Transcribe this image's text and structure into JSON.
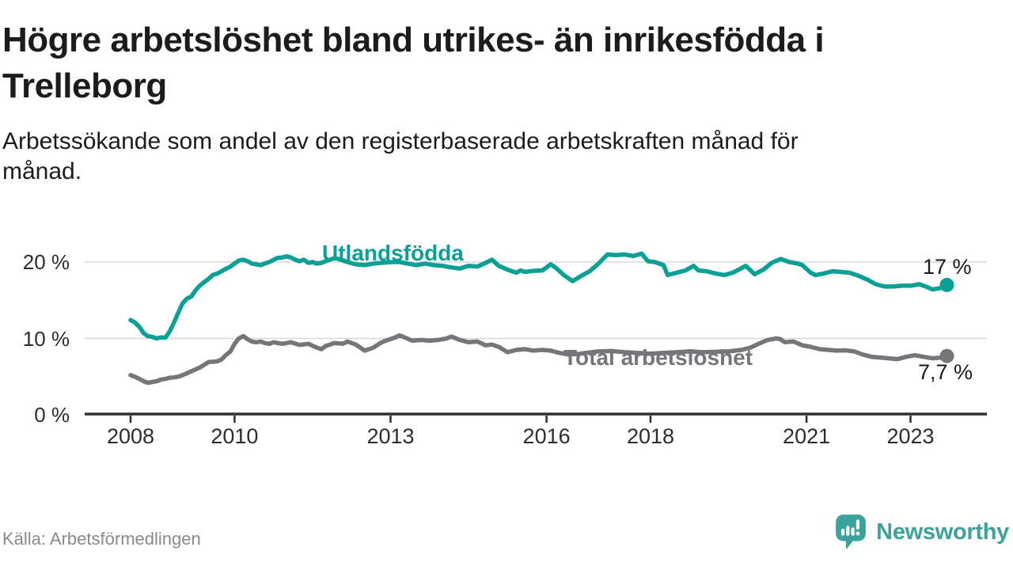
{
  "header": {
    "title": "Högre arbetslöshet bland utrikes- än inrikesfödda i Trelleborg",
    "subtitle": "Arbetssökande som andel av den registerbaserade arbetskraften månad för månad."
  },
  "footer": {
    "source": "Källa: Arbetsförmedlingen",
    "brand": "Newsworthy"
  },
  "colors": {
    "accent_teal": "#0aa096",
    "series_gray": "#75767a",
    "gridline": "#d9d9d9",
    "axis": "#2e2e2e",
    "text_dark": "#1c1c1c",
    "muted_text": "#8a8a8a",
    "logo_teal": "#3ba39b"
  },
  "chart_data": {
    "type": "line",
    "title": "Högre arbetslöshet bland utrikes- än inrikesfödda i Trelleborg",
    "subtitle": "Arbetssökande som andel av den registerbaserade arbetskraften månad för månad.",
    "xlabel": "",
    "ylabel": "%",
    "xlim": [
      2007.9,
      2024.5
    ],
    "ylim": [
      0,
      22
    ],
    "grid": true,
    "legend_position": "inline-labels",
    "x_ticks": [
      {
        "year": 2008,
        "label": "2008"
      },
      {
        "year": 2010,
        "label": "2010"
      },
      {
        "year": 2013,
        "label": "2013"
      },
      {
        "year": 2016,
        "label": "2016"
      },
      {
        "year": 2018,
        "label": "2018"
      },
      {
        "year": 2021,
        "label": "2021"
      },
      {
        "year": 2023,
        "label": "2023"
      }
    ],
    "y_ticks": [
      {
        "value": 0,
        "label": "0 %"
      },
      {
        "value": 10,
        "label": "10 %"
      },
      {
        "value": 20,
        "label": "20 %"
      }
    ],
    "series": [
      {
        "name": "Utlandsfödda",
        "color": "#0aa096",
        "end_label": "17 %",
        "end_value": 17,
        "points": [
          [
            2008.0,
            12.4
          ],
          [
            2008.08,
            12.1
          ],
          [
            2008.17,
            11.5
          ],
          [
            2008.25,
            10.7
          ],
          [
            2008.33,
            10.3
          ],
          [
            2008.42,
            10.2
          ],
          [
            2008.5,
            10.0
          ],
          [
            2008.58,
            10.15
          ],
          [
            2008.67,
            10.1
          ],
          [
            2008.75,
            10.9
          ],
          [
            2008.83,
            12.0
          ],
          [
            2008.92,
            13.4
          ],
          [
            2009.0,
            14.6
          ],
          [
            2009.08,
            15.2
          ],
          [
            2009.17,
            15.5
          ],
          [
            2009.25,
            16.3
          ],
          [
            2009.33,
            16.9
          ],
          [
            2009.42,
            17.4
          ],
          [
            2009.5,
            17.8
          ],
          [
            2009.58,
            18.3
          ],
          [
            2009.67,
            18.5
          ],
          [
            2009.75,
            18.8
          ],
          [
            2009.83,
            19.1
          ],
          [
            2009.92,
            19.4
          ],
          [
            2010.0,
            19.8
          ],
          [
            2010.08,
            20.2
          ],
          [
            2010.17,
            20.3
          ],
          [
            2010.25,
            20.1
          ],
          [
            2010.33,
            19.8
          ],
          [
            2010.42,
            19.7
          ],
          [
            2010.5,
            19.6
          ],
          [
            2010.58,
            19.8
          ],
          [
            2010.67,
            20.0
          ],
          [
            2010.75,
            20.3
          ],
          [
            2010.83,
            20.55
          ],
          [
            2010.92,
            20.6
          ],
          [
            2011.0,
            20.75
          ],
          [
            2011.08,
            20.6
          ],
          [
            2011.17,
            20.3
          ],
          [
            2011.25,
            20.1
          ],
          [
            2011.33,
            20.3
          ],
          [
            2011.42,
            19.9
          ],
          [
            2011.5,
            20.0
          ],
          [
            2011.58,
            19.8
          ],
          [
            2011.67,
            19.9
          ],
          [
            2011.75,
            20.1
          ],
          [
            2011.83,
            20.3
          ],
          [
            2011.92,
            20.5
          ],
          [
            2012.0,
            20.4
          ],
          [
            2012.17,
            20.0
          ],
          [
            2012.33,
            19.7
          ],
          [
            2012.5,
            19.6
          ],
          [
            2012.67,
            19.8
          ],
          [
            2012.83,
            19.9
          ],
          [
            2013.0,
            20.0
          ],
          [
            2013.17,
            20.0
          ],
          [
            2013.33,
            19.8
          ],
          [
            2013.5,
            19.6
          ],
          [
            2013.67,
            19.8
          ],
          [
            2013.83,
            19.6
          ],
          [
            2014.0,
            19.5
          ],
          [
            2014.17,
            19.3
          ],
          [
            2014.33,
            19.15
          ],
          [
            2014.5,
            19.5
          ],
          [
            2014.67,
            19.4
          ],
          [
            2014.83,
            19.9
          ],
          [
            2014.95,
            20.3
          ],
          [
            2015.08,
            19.5
          ],
          [
            2015.25,
            19.0
          ],
          [
            2015.42,
            18.6
          ],
          [
            2015.5,
            18.9
          ],
          [
            2015.58,
            18.7
          ],
          [
            2015.75,
            18.85
          ],
          [
            2015.92,
            18.9
          ],
          [
            2016.08,
            19.7
          ],
          [
            2016.17,
            19.3
          ],
          [
            2016.33,
            18.3
          ],
          [
            2016.5,
            17.5
          ],
          [
            2016.67,
            18.2
          ],
          [
            2016.83,
            18.8
          ],
          [
            2017.0,
            19.8
          ],
          [
            2017.17,
            21.0
          ],
          [
            2017.33,
            20.9
          ],
          [
            2017.5,
            21.0
          ],
          [
            2017.67,
            20.8
          ],
          [
            2017.83,
            21.1
          ],
          [
            2017.95,
            20.1
          ],
          [
            2018.08,
            20.0
          ],
          [
            2018.25,
            19.6
          ],
          [
            2018.33,
            18.3
          ],
          [
            2018.5,
            18.6
          ],
          [
            2018.67,
            18.9
          ],
          [
            2018.83,
            19.5
          ],
          [
            2018.92,
            18.9
          ],
          [
            2019.08,
            18.8
          ],
          [
            2019.25,
            18.5
          ],
          [
            2019.42,
            18.3
          ],
          [
            2019.58,
            18.6
          ],
          [
            2019.75,
            19.2
          ],
          [
            2019.83,
            19.5
          ],
          [
            2020.0,
            18.4
          ],
          [
            2020.17,
            19.0
          ],
          [
            2020.33,
            19.9
          ],
          [
            2020.5,
            20.4
          ],
          [
            2020.67,
            20.0
          ],
          [
            2020.83,
            19.8
          ],
          [
            2020.92,
            19.6
          ],
          [
            2021.08,
            18.6
          ],
          [
            2021.17,
            18.3
          ],
          [
            2021.33,
            18.5
          ],
          [
            2021.5,
            18.8
          ],
          [
            2021.67,
            18.7
          ],
          [
            2021.83,
            18.6
          ],
          [
            2022.0,
            18.2
          ],
          [
            2022.17,
            17.7
          ],
          [
            2022.33,
            17.1
          ],
          [
            2022.5,
            16.8
          ],
          [
            2022.67,
            16.8
          ],
          [
            2022.83,
            16.9
          ],
          [
            2023.0,
            16.9
          ],
          [
            2023.17,
            17.1
          ],
          [
            2023.33,
            16.7
          ],
          [
            2023.42,
            16.4
          ],
          [
            2023.58,
            16.6
          ],
          [
            2023.7,
            17.0
          ]
        ]
      },
      {
        "name": "Total arbetslöshet",
        "color": "#75767a",
        "end_label": "7,7 %",
        "end_value": 7.7,
        "points": [
          [
            2008.0,
            5.2
          ],
          [
            2008.08,
            5.0
          ],
          [
            2008.17,
            4.7
          ],
          [
            2008.25,
            4.4
          ],
          [
            2008.33,
            4.2
          ],
          [
            2008.42,
            4.3
          ],
          [
            2008.5,
            4.4
          ],
          [
            2008.58,
            4.6
          ],
          [
            2008.67,
            4.7
          ],
          [
            2008.75,
            4.85
          ],
          [
            2008.83,
            4.9
          ],
          [
            2008.92,
            5.0
          ],
          [
            2009.0,
            5.2
          ],
          [
            2009.17,
            5.7
          ],
          [
            2009.33,
            6.2
          ],
          [
            2009.5,
            6.9
          ],
          [
            2009.67,
            7.0
          ],
          [
            2009.75,
            7.25
          ],
          [
            2009.83,
            7.8
          ],
          [
            2009.92,
            8.3
          ],
          [
            2010.0,
            9.3
          ],
          [
            2010.08,
            10.0
          ],
          [
            2010.17,
            10.3
          ],
          [
            2010.25,
            9.9
          ],
          [
            2010.33,
            9.6
          ],
          [
            2010.42,
            9.5
          ],
          [
            2010.5,
            9.6
          ],
          [
            2010.58,
            9.4
          ],
          [
            2010.67,
            9.3
          ],
          [
            2010.75,
            9.5
          ],
          [
            2010.83,
            9.4
          ],
          [
            2010.92,
            9.3
          ],
          [
            2011.0,
            9.4
          ],
          [
            2011.08,
            9.5
          ],
          [
            2011.25,
            9.15
          ],
          [
            2011.42,
            9.3
          ],
          [
            2011.58,
            8.8
          ],
          [
            2011.67,
            8.6
          ],
          [
            2011.75,
            9.0
          ],
          [
            2011.92,
            9.4
          ],
          [
            2012.08,
            9.3
          ],
          [
            2012.17,
            9.6
          ],
          [
            2012.33,
            9.2
          ],
          [
            2012.42,
            8.8
          ],
          [
            2012.5,
            8.4
          ],
          [
            2012.67,
            8.8
          ],
          [
            2012.83,
            9.5
          ],
          [
            2012.95,
            9.8
          ],
          [
            2013.08,
            10.1
          ],
          [
            2013.17,
            10.4
          ],
          [
            2013.25,
            10.2
          ],
          [
            2013.42,
            9.7
          ],
          [
            2013.58,
            9.8
          ],
          [
            2013.75,
            9.7
          ],
          [
            2013.92,
            9.8
          ],
          [
            2014.08,
            10.0
          ],
          [
            2014.17,
            10.25
          ],
          [
            2014.33,
            9.8
          ],
          [
            2014.5,
            9.5
          ],
          [
            2014.67,
            9.6
          ],
          [
            2014.83,
            9.1
          ],
          [
            2014.95,
            9.2
          ],
          [
            2015.08,
            8.9
          ],
          [
            2015.25,
            8.2
          ],
          [
            2015.42,
            8.5
          ],
          [
            2015.58,
            8.6
          ],
          [
            2015.75,
            8.4
          ],
          [
            2015.92,
            8.5
          ],
          [
            2016.08,
            8.4
          ],
          [
            2016.25,
            8.1
          ],
          [
            2016.42,
            7.9
          ],
          [
            2016.58,
            7.95
          ],
          [
            2016.75,
            8.1
          ],
          [
            2017.0,
            8.3
          ],
          [
            2017.25,
            8.35
          ],
          [
            2017.5,
            8.2
          ],
          [
            2017.75,
            8.1
          ],
          [
            2018.0,
            8.0
          ],
          [
            2018.25,
            8.1
          ],
          [
            2018.5,
            8.2
          ],
          [
            2018.75,
            8.3
          ],
          [
            2019.0,
            8.2
          ],
          [
            2019.25,
            8.25
          ],
          [
            2019.5,
            8.3
          ],
          [
            2019.75,
            8.5
          ],
          [
            2019.92,
            8.8
          ],
          [
            2020.08,
            9.3
          ],
          [
            2020.25,
            9.8
          ],
          [
            2020.42,
            10.0
          ],
          [
            2020.5,
            9.9
          ],
          [
            2020.58,
            9.5
          ],
          [
            2020.75,
            9.6
          ],
          [
            2020.92,
            9.1
          ],
          [
            2021.08,
            8.9
          ],
          [
            2021.25,
            8.6
          ],
          [
            2021.42,
            8.5
          ],
          [
            2021.58,
            8.4
          ],
          [
            2021.75,
            8.45
          ],
          [
            2021.92,
            8.3
          ],
          [
            2022.08,
            7.9
          ],
          [
            2022.25,
            7.6
          ],
          [
            2022.42,
            7.5
          ],
          [
            2022.58,
            7.4
          ],
          [
            2022.75,
            7.3
          ],
          [
            2022.92,
            7.6
          ],
          [
            2023.08,
            7.8
          ],
          [
            2023.25,
            7.6
          ],
          [
            2023.42,
            7.4
          ],
          [
            2023.58,
            7.5
          ],
          [
            2023.7,
            7.7
          ]
        ]
      }
    ]
  }
}
